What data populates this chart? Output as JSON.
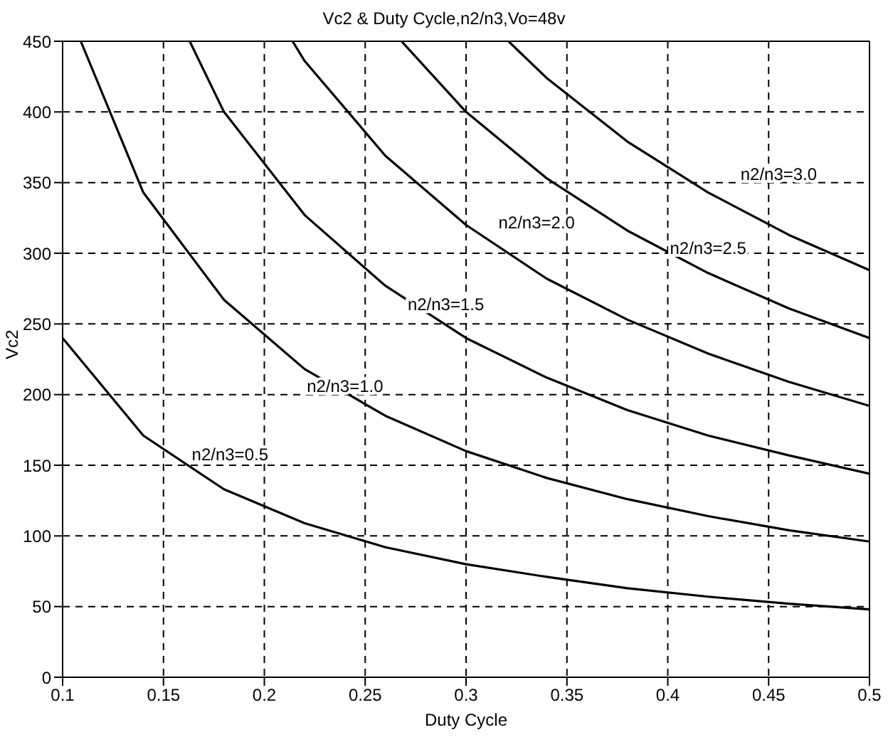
{
  "chart_data": {
    "type": "line",
    "title": "Vc2 & Duty Cycle,n2/n3,Vo=48v",
    "xlabel": "Duty Cycle",
    "ylabel": "Vc2",
    "xlim": [
      0.1,
      0.5
    ],
    "xticks": [
      0.1,
      0.15,
      0.2,
      0.25,
      0.3,
      0.35,
      0.4,
      0.45,
      0.5
    ],
    "ylim": [
      0,
      450
    ],
    "yticks": [
      0,
      50,
      100,
      150,
      200,
      250,
      300,
      350,
      400,
      450
    ],
    "grid": true,
    "legend": false,
    "marker": "none",
    "line_style": "solid",
    "series": [
      {
        "color": "#000000",
        "x": [
          0.1,
          0.14,
          0.18,
          0.22,
          0.26,
          0.3,
          0.34,
          0.38,
          0.42,
          0.46,
          0.5
        ],
        "values": [
          240,
          171,
          133,
          109,
          92,
          80,
          71,
          63,
          57,
          52,
          48
        ]
      },
      {
        "color": "#000000",
        "x": [
          0.109,
          0.14,
          0.18,
          0.22,
          0.26,
          0.3,
          0.34,
          0.38,
          0.42,
          0.46,
          0.5
        ],
        "values": [
          450,
          343,
          267,
          218,
          185,
          160,
          141,
          126,
          114,
          104,
          96
        ]
      },
      {
        "color": "#000000",
        "x": [
          0.163,
          0.18,
          0.22,
          0.26,
          0.3,
          0.34,
          0.38,
          0.42,
          0.46,
          0.5
        ],
        "values": [
          450,
          400,
          327,
          277,
          240,
          212,
          189,
          171,
          157,
          144
        ]
      },
      {
        "color": "#000000",
        "x": [
          0.214,
          0.22,
          0.26,
          0.3,
          0.34,
          0.38,
          0.42,
          0.46,
          0.5
        ],
        "values": [
          450,
          436,
          369,
          320,
          282,
          253,
          229,
          209,
          192
        ]
      },
      {
        "color": "#000000",
        "x": [
          0.268,
          0.3,
          0.34,
          0.38,
          0.42,
          0.46,
          0.5
        ],
        "values": [
          450,
          400,
          353,
          316,
          286,
          261,
          240
        ]
      },
      {
        "color": "#000000",
        "x": [
          0.321,
          0.34,
          0.38,
          0.42,
          0.46,
          0.5
        ],
        "values": [
          450,
          424,
          379,
          343,
          313,
          288
        ]
      }
    ],
    "annotations": [
      "n2/n3=0.5",
      "n2/n3=1.0",
      "n2/n3=1.5",
      "n2/n3=2.0",
      "n2/n3=2.5",
      "n2/n3=3.0"
    ]
  }
}
